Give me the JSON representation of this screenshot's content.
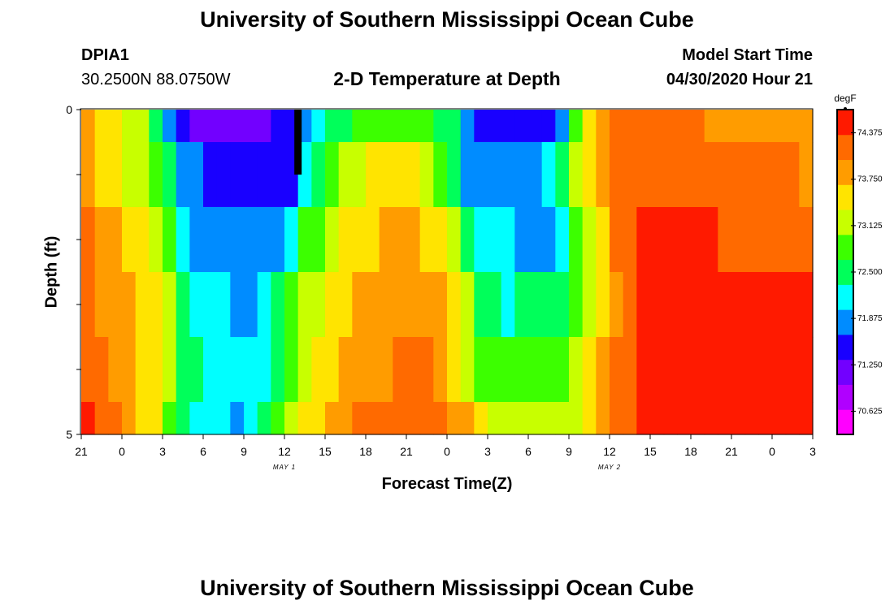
{
  "page": {
    "title_top": "University of Southern Mississippi Ocean Cube",
    "title_bottom": "University of Southern Mississippi Ocean Cube"
  },
  "header": {
    "station": "DPIA1",
    "location": "30.2500N 88.0750W",
    "plot_title": "2-D Temperature at Depth",
    "model_start_label": "Model Start Time",
    "model_start_value": "04/30/2020 Hour 21"
  },
  "chart_data": {
    "type": "heatmap",
    "title": "2-D Temperature at Depth",
    "xlabel": "Forecast Time(Z)",
    "ylabel": "Depth (ft)",
    "x_tick_labels": [
      "21",
      "0",
      "3",
      "6",
      "9",
      "12",
      "15",
      "18",
      "21",
      "0",
      "3",
      "6",
      "9",
      "12",
      "15",
      "18",
      "21",
      "0",
      "3"
    ],
    "date_labels": [
      {
        "text": "MAY 1",
        "tick_index": 5
      },
      {
        "text": "MAY 2",
        "tick_index": 13
      }
    ],
    "y_tick_labels": [
      {
        "text": "0",
        "depth": 0
      },
      {
        "text": "",
        "depth": 1
      },
      {
        "text": "",
        "depth": 2
      },
      {
        "text": "",
        "depth": 3
      },
      {
        "text": "",
        "depth": 4
      },
      {
        "text": "5",
        "depth": 5
      }
    ],
    "ylim": [
      0,
      5
    ],
    "x_range_hours": [
      0,
      54
    ],
    "hour_step": 1,
    "depth_levels": [
      0.25,
      1,
      2,
      3,
      4,
      4.75
    ],
    "depth_bands": [
      [
        0,
        0.5
      ],
      [
        0.5,
        1.5
      ],
      [
        1.5,
        2.5
      ],
      [
        2.5,
        3.5
      ],
      [
        3.5,
        4.5
      ],
      [
        4.5,
        5
      ]
    ],
    "temperature_anchors": [
      [
        [
          0,
          73.8
        ],
        [
          5,
          73.0
        ],
        [
          6,
          72.3
        ],
        [
          7,
          71.4
        ],
        [
          12,
          71.0
        ],
        [
          16,
          71.6
        ],
        [
          18,
          72.4
        ],
        [
          21,
          72.9
        ],
        [
          24,
          73.0
        ],
        [
          27,
          72.6
        ],
        [
          29,
          71.6
        ],
        [
          32,
          71.3
        ],
        [
          35,
          71.5
        ],
        [
          36,
          72.4
        ],
        [
          38,
          73.7
        ],
        [
          40,
          74.3
        ],
        [
          44,
          74.2
        ],
        [
          48,
          73.9
        ],
        [
          54,
          73.9
        ]
      ],
      [
        [
          0,
          73.9
        ],
        [
          5,
          73.1
        ],
        [
          7,
          72.1
        ],
        [
          8,
          71.7
        ],
        [
          15,
          71.5
        ],
        [
          16,
          71.8
        ],
        [
          17,
          72.5
        ],
        [
          19,
          73.1
        ],
        [
          23,
          73.6
        ],
        [
          25,
          73.3
        ],
        [
          27,
          72.9
        ],
        [
          28,
          72.0
        ],
        [
          30,
          71.7
        ],
        [
          33,
          71.7
        ],
        [
          35,
          72.2
        ],
        [
          37,
          73.4
        ],
        [
          39,
          74.1
        ],
        [
          41,
          74.3
        ],
        [
          54,
          74.0
        ]
      ],
      [
        [
          0,
          74.1
        ],
        [
          6,
          73.1
        ],
        [
          8,
          71.9
        ],
        [
          15,
          71.7
        ],
        [
          16,
          72.6
        ],
        [
          20,
          73.5
        ],
        [
          24,
          73.9
        ],
        [
          27,
          73.4
        ],
        [
          28,
          72.8
        ],
        [
          29,
          72.1
        ],
        [
          35,
          71.9
        ],
        [
          37,
          73.0
        ],
        [
          39,
          73.9
        ],
        [
          41,
          74.4
        ],
        [
          54,
          74.3
        ]
      ],
      [
        [
          0,
          74.2
        ],
        [
          6,
          73.4
        ],
        [
          8,
          72.2
        ],
        [
          13,
          71.9
        ],
        [
          14,
          72.3
        ],
        [
          16,
          73.0
        ],
        [
          20,
          73.7
        ],
        [
          25,
          74.0
        ],
        [
          28,
          73.5
        ],
        [
          29,
          72.7
        ],
        [
          31,
          72.3
        ],
        [
          35,
          72.4
        ],
        [
          37,
          73.1
        ],
        [
          40,
          74.0
        ],
        [
          42,
          74.5
        ],
        [
          54,
          74.5
        ]
      ],
      [
        [
          0,
          74.4
        ],
        [
          6,
          73.4
        ],
        [
          8,
          72.4
        ],
        [
          13,
          72.0
        ],
        [
          15,
          72.8
        ],
        [
          20,
          73.9
        ],
        [
          26,
          74.1
        ],
        [
          28,
          73.5
        ],
        [
          30,
          72.8
        ],
        [
          34,
          72.7
        ],
        [
          37,
          73.3
        ],
        [
          40,
          74.2
        ],
        [
          42,
          74.6
        ],
        [
          54,
          74.6
        ]
      ],
      [
        [
          0,
          74.5
        ],
        [
          6,
          73.4
        ],
        [
          7,
          72.5
        ],
        [
          12,
          71.9
        ],
        [
          15,
          73.1
        ],
        [
          21,
          74.2
        ],
        [
          27,
          74.1
        ],
        [
          30,
          73.3
        ],
        [
          36,
          73.0
        ],
        [
          39,
          73.9
        ],
        [
          42,
          74.6
        ],
        [
          54,
          74.7
        ]
      ]
    ],
    "marker": {
      "hour": 16,
      "depth_from": 0,
      "depth_to": 1
    },
    "colorbar": {
      "unit": "degF",
      "min": 70.3125,
      "max": 74.6875,
      "tick_labels": [
        "74.375",
        "73.750",
        "73.125",
        "72.500",
        "71.875",
        "71.250",
        "70.625"
      ],
      "colors": [
        "#ff00ff",
        "#b000ff",
        "#7200ff",
        "#1900ff",
        "#008cff",
        "#00ffff",
        "#00ff5a",
        "#3cff00",
        "#c8ff00",
        "#ffe400",
        "#ff9c00",
        "#ff6a00",
        "#ff1a00"
      ]
    }
  }
}
